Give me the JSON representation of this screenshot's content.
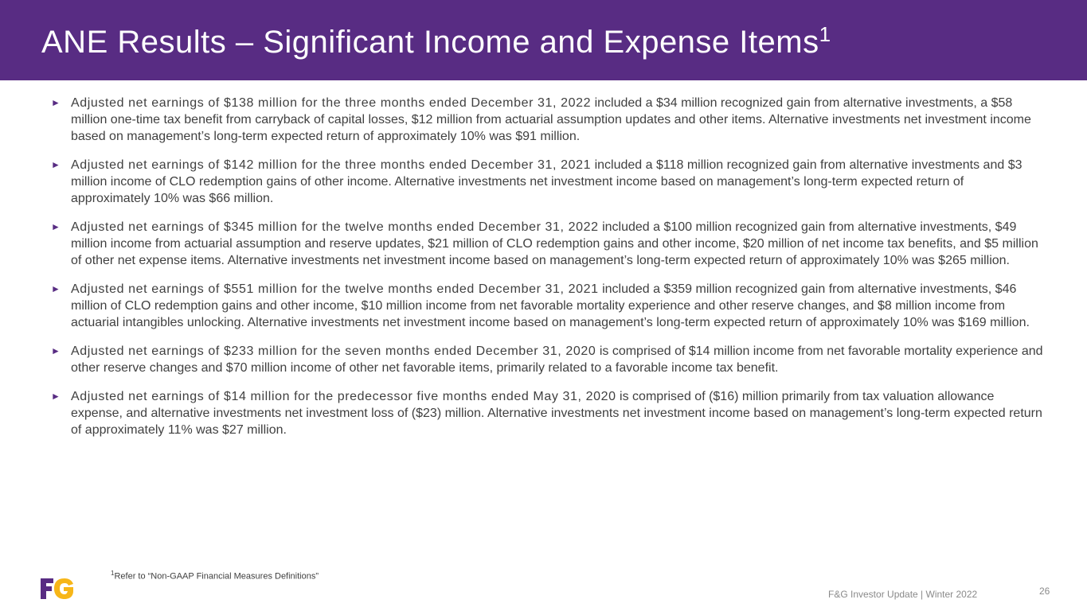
{
  "header": {
    "title": "ANE Results – Significant Income and Expense Items",
    "title_sup": "1",
    "color": "#582c83"
  },
  "bullets": [
    {
      "lead": "Adjusted net earnings of $138 million for the three months ended December 31, 2022",
      "text": " included a $34 million recognized gain from alternative investments, a $58 million one-time tax benefit from carryback of capital losses, $12 million from actuarial assumption updates and other items. Alternative investments net investment income based on management’s long-term expected return of approximately 10% was $91 million."
    },
    {
      "lead": "Adjusted net earnings of $142 million for the three months ended December 31, 2021",
      "text": " included a $118 million recognized gain from alternative investments and $3 million income of CLO redemption gains of other income.  Alternative investments net investment income based on management’s long-term expected return of approximately 10% was $66 million."
    },
    {
      "lead": "Adjusted net earnings of $345 million for the twelve months ended December 31, 2022",
      "text": " included a $100 million recognized gain from alternative investments, $49 million income from actuarial assumption and reserve updates, $21 million of CLO redemption gains and other income, $20 million of net income tax benefits, and $5 million of other net expense items. Alternative investments net investment income based on management’s long-term expected return of approximately 10% was $265 million."
    },
    {
      "lead": "Adjusted net earnings of $551 million for the twelve months ended December 31, 2021",
      "text": " included a $359 million recognized gain from alternative investments, $46 million of CLO redemption gains and other income, $10 million income from net favorable mortality experience and other reserve changes, and $8 million income from actuarial intangibles unlocking. Alternative investments net investment income based on management’s long-term expected return of approximately 10% was $169 million."
    },
    {
      "lead": "Adjusted net earnings of $233 million for the seven months ended December 31, 2020",
      "text": " is comprised of $14 million income from net favorable mortality experience and other reserve changes and $70 million income of other net favorable items, primarily related to a favorable income tax benefit."
    },
    {
      "lead": "Adjusted net earnings of $14 million for the predecessor five months ended May 31, 2020",
      "text": " is comprised of ($16) million primarily from tax valuation allowance expense, and alternative investments net investment loss of ($23) million.  Alternative investments net investment income based on management’s long-term expected return of approximately 11% was $27 million."
    }
  ],
  "footnote": {
    "sup": "1",
    "text": "Refer to “Non-GAAP Financial Measures Definitions”"
  },
  "footer": {
    "text": "F&G Investor Update | Winter 2022",
    "page": "26",
    "logo": "F&G"
  }
}
